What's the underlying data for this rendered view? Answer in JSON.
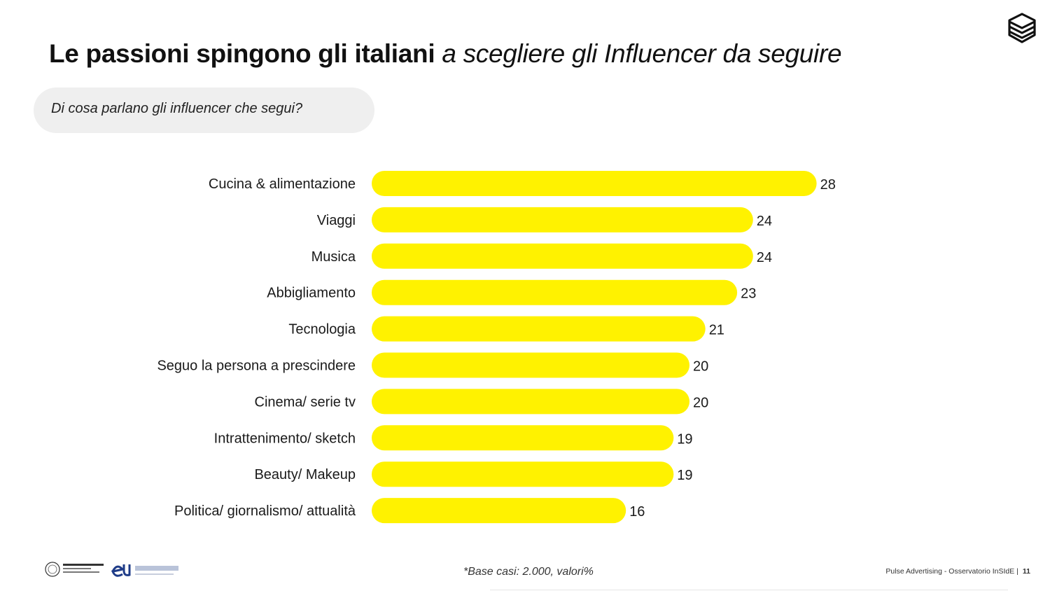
{
  "header": {
    "title_bold": "Le passioni spingono gli italiani",
    "title_italic": "a scegliere gli Influencer da seguire",
    "logo_icon": "layered-cube-icon"
  },
  "question": "Di cosa parlano gli influencer che segui?",
  "chart_data": {
    "type": "bar",
    "orientation": "horizontal",
    "categories": [
      "Cucina & alimentazione",
      "Viaggi",
      "Musica",
      "Abbigliamento",
      "Tecnologia",
      "Seguo la persona a prescindere",
      "Cinema/ serie tv",
      "Intrattenimento/ sketch",
      "Beauty/ Makeup",
      "Politica/ giornalismo/ attualità"
    ],
    "values": [
      28,
      24,
      24,
      23,
      21,
      20,
      20,
      19,
      19,
      16
    ],
    "data_labels": [
      "28",
      "24",
      "24",
      "23",
      "21",
      "20",
      "20",
      "19",
      "19",
      "16"
    ],
    "bar_color": "#FFF200",
    "grid": false,
    "legend": "none"
  },
  "footer": {
    "note": "*Base casi: 2.000, valori%",
    "source": "Pulse Advertising - Osservatorio InSIdE |",
    "page_number": "11",
    "partner_logos": [
      "Università di Pavia",
      "eumetra"
    ]
  }
}
